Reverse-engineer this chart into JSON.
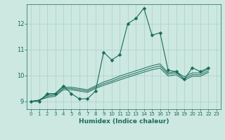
{
  "xlabel": "Humidex (Indice chaleur)",
  "background_color": "#cce8e0",
  "grid_color": "#aad0c8",
  "line_color": "#1a6b5a",
  "xlim": [
    -0.5,
    23.5
  ],
  "ylim": [
    8.7,
    12.75
  ],
  "yticks": [
    9,
    10,
    11,
    12
  ],
  "xticks": [
    0,
    1,
    2,
    3,
    4,
    5,
    6,
    7,
    8,
    9,
    10,
    11,
    12,
    13,
    14,
    15,
    16,
    17,
    18,
    19,
    20,
    21,
    22,
    23
  ],
  "main_series": [
    9.0,
    9.0,
    9.3,
    9.3,
    9.6,
    9.3,
    9.1,
    9.1,
    9.4,
    10.9,
    10.6,
    10.8,
    12.0,
    12.2,
    12.6,
    11.55,
    11.65,
    10.2,
    10.15,
    9.85,
    10.3,
    10.15,
    10.3
  ],
  "trend_series": [
    [
      9.0,
      9.05,
      9.25,
      9.3,
      9.55,
      9.55,
      9.5,
      9.45,
      9.6,
      9.75,
      9.85,
      9.98,
      10.08,
      10.18,
      10.28,
      10.38,
      10.45,
      10.1,
      10.15,
      9.95,
      10.1,
      10.1,
      10.25
    ],
    [
      9.0,
      9.05,
      9.2,
      9.25,
      9.5,
      9.5,
      9.45,
      9.4,
      9.55,
      9.68,
      9.78,
      9.9,
      10.0,
      10.1,
      10.2,
      10.3,
      10.37,
      10.05,
      10.1,
      9.88,
      10.03,
      10.03,
      10.18
    ],
    [
      9.0,
      9.05,
      9.15,
      9.2,
      9.45,
      9.45,
      9.4,
      9.35,
      9.5,
      9.62,
      9.72,
      9.83,
      9.93,
      10.03,
      10.13,
      10.22,
      10.29,
      9.98,
      10.03,
      9.82,
      9.97,
      9.97,
      10.12
    ]
  ],
  "marker": "D",
  "main_markersize": 2.5,
  "linewidth": 0.8,
  "trend_linewidth": 0.7
}
